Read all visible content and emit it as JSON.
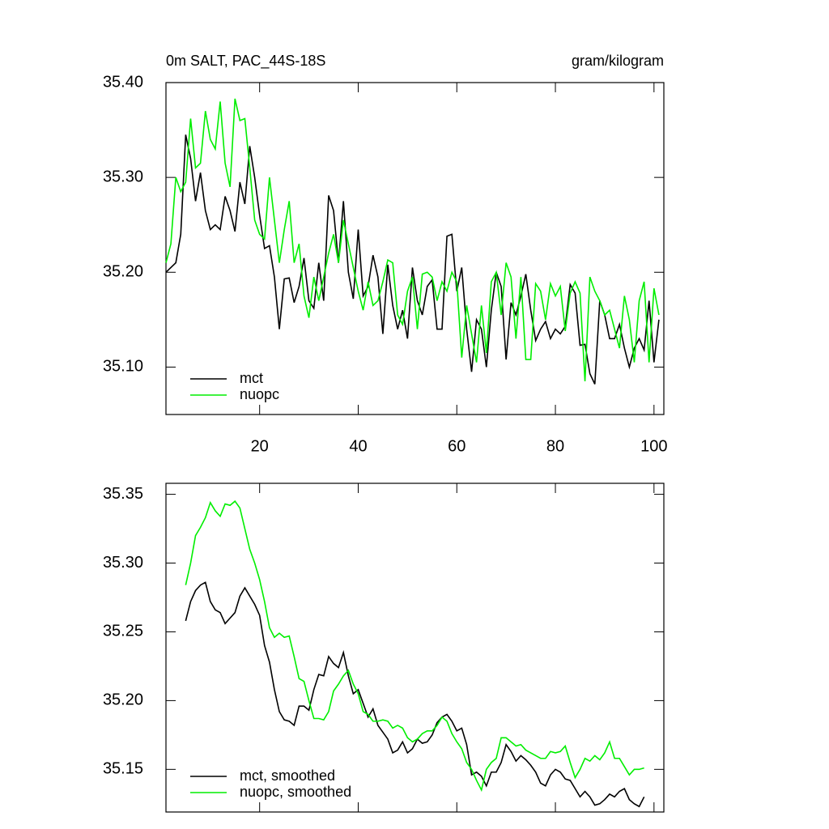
{
  "chart_data": [
    {
      "type": "line",
      "title": "0m SALT, PAC_44S-18S",
      "subtitle": "gram/kilogram",
      "x": [
        1,
        2,
        3,
        4,
        5,
        6,
        7,
        8,
        9,
        10,
        11,
        12,
        13,
        14,
        15,
        16,
        17,
        18,
        19,
        20,
        21,
        22,
        23,
        24,
        25,
        26,
        27,
        28,
        29,
        30,
        31,
        32,
        33,
        34,
        35,
        36,
        37,
        38,
        39,
        40,
        41,
        42,
        43,
        44,
        45,
        46,
        47,
        48,
        49,
        50,
        51,
        52,
        53,
        54,
        55,
        56,
        57,
        58,
        59,
        60,
        61,
        62,
        63,
        64,
        65,
        66,
        67,
        68,
        69,
        70,
        71,
        72,
        73,
        74,
        75,
        76,
        77,
        78,
        79,
        80,
        81,
        82,
        83,
        84,
        85,
        86,
        87,
        88,
        89,
        90,
        91,
        92,
        93,
        94,
        95,
        96,
        97,
        98,
        99,
        100,
        101
      ],
      "series": [
        {
          "name": "mct",
          "color": "#000000",
          "values": [
            35.2,
            35.205,
            35.21,
            35.24,
            35.345,
            35.32,
            35.275,
            35.305,
            35.265,
            35.245,
            35.25,
            35.245,
            35.28,
            35.265,
            35.243,
            35.295,
            35.272,
            35.333,
            35.3,
            35.26,
            35.225,
            35.228,
            35.195,
            35.14,
            35.193,
            35.194,
            35.168,
            35.185,
            35.215,
            35.17,
            35.162,
            35.21,
            35.17,
            35.281,
            35.265,
            35.21,
            35.275,
            35.2,
            35.172,
            35.245,
            35.175,
            35.185,
            35.218,
            35.195,
            35.135,
            35.208,
            35.165,
            35.14,
            35.16,
            35.13,
            35.205,
            35.17,
            35.155,
            35.185,
            35.192,
            35.14,
            35.14,
            35.238,
            35.24,
            35.18,
            35.205,
            35.14,
            35.095,
            35.15,
            35.14,
            35.1,
            35.16,
            35.2,
            35.185,
            35.108,
            35.168,
            35.155,
            35.175,
            35.198,
            35.16,
            35.128,
            35.14,
            35.148,
            35.13,
            35.14,
            35.135,
            35.143,
            35.187,
            35.178,
            35.123,
            35.124,
            35.093,
            35.082,
            35.17,
            35.155,
            35.13,
            35.13,
            35.145,
            35.12,
            35.1,
            35.12,
            35.13,
            35.118,
            35.17,
            35.105,
            35.15
          ]
        },
        {
          "name": "nuopc",
          "color": "#00ee00",
          "values": [
            35.21,
            35.23,
            35.3,
            35.285,
            35.295,
            35.362,
            35.31,
            35.315,
            35.37,
            35.34,
            35.33,
            35.38,
            35.315,
            35.29,
            35.383,
            35.36,
            35.362,
            35.31,
            35.255,
            35.24,
            35.235,
            35.3,
            35.255,
            35.21,
            35.245,
            35.275,
            35.21,
            35.23,
            35.175,
            35.152,
            35.195,
            35.17,
            35.195,
            35.22,
            35.24,
            35.21,
            35.255,
            35.23,
            35.205,
            35.18,
            35.16,
            35.19,
            35.165,
            35.17,
            35.19,
            35.213,
            35.21,
            35.155,
            35.145,
            35.18,
            35.195,
            35.14,
            35.198,
            35.2,
            35.195,
            35.17,
            35.19,
            35.18,
            35.2,
            35.19,
            35.11,
            35.165,
            35.135,
            35.105,
            35.165,
            35.115,
            35.19,
            35.2,
            35.155,
            35.21,
            35.195,
            35.13,
            35.195,
            35.108,
            35.108,
            35.188,
            35.18,
            35.15,
            35.188,
            35.175,
            35.185,
            35.138,
            35.178,
            35.19,
            35.178,
            35.085,
            35.195,
            35.18,
            35.17,
            35.155,
            35.16,
            35.14,
            35.12,
            35.175,
            35.15,
            35.105,
            35.17,
            35.19,
            35.105,
            35.183,
            35.155
          ]
        }
      ],
      "xlim": [
        1,
        102
      ],
      "xticks": [
        20,
        40,
        60,
        80,
        100
      ],
      "ylim": [
        35.05,
        35.4
      ],
      "yticks": [
        {
          "value": 35.1,
          "label": "35.10"
        },
        {
          "value": 35.2,
          "label": "35.20"
        },
        {
          "value": 35.3,
          "label": "35.30"
        },
        {
          "value": 35.4,
          "label": "35.40"
        }
      ],
      "legend": "lower left"
    },
    {
      "type": "line",
      "x": [
        1,
        2,
        3,
        4,
        5,
        6,
        7,
        8,
        9,
        10,
        11,
        12,
        13,
        14,
        15,
        16,
        17,
        18,
        19,
        20,
        21,
        22,
        23,
        24,
        25,
        26,
        27,
        28,
        29,
        30,
        31,
        32,
        33,
        34,
        35,
        36,
        37,
        38,
        39,
        40,
        41,
        42,
        43,
        44,
        45,
        46,
        47,
        48,
        49,
        50,
        51,
        52,
        53,
        54,
        55,
        56,
        57,
        58,
        59,
        60,
        61,
        62,
        63,
        64,
        65,
        66,
        67,
        68,
        69,
        70,
        71,
        72,
        73,
        74,
        75,
        76,
        77,
        78,
        79,
        80,
        81,
        82,
        83,
        84,
        85,
        86,
        87,
        88,
        89,
        90,
        91,
        92,
        93,
        94,
        95,
        96,
        97,
        98,
        99,
        100,
        101
      ],
      "series": [
        {
          "name": "mct, smoothed",
          "color": "#000000",
          "values": [
            null,
            null,
            null,
            null,
            35.258,
            35.272,
            35.28,
            35.284,
            35.286,
            35.272,
            35.266,
            35.264,
            35.256,
            35.26,
            35.264,
            35.276,
            35.282,
            35.276,
            35.27,
            35.262,
            35.24,
            35.228,
            35.208,
            35.192,
            35.186,
            35.185,
            35.182,
            35.196,
            35.196,
            35.193,
            35.208,
            35.219,
            35.218,
            35.232,
            35.227,
            35.224,
            35.235,
            35.218,
            35.205,
            35.208,
            35.198,
            35.188,
            35.194,
            35.182,
            35.177,
            35.172,
            35.162,
            35.164,
            35.17,
            35.162,
            35.165,
            35.172,
            35.169,
            35.17,
            35.175,
            35.184,
            35.188,
            35.19,
            35.185,
            35.178,
            35.18,
            35.168,
            35.146,
            35.148,
            35.145,
            35.138,
            35.148,
            35.148,
            35.155,
            35.168,
            35.163,
            35.156,
            35.16,
            35.157,
            35.153,
            35.148,
            35.14,
            35.138,
            35.146,
            35.15,
            35.148,
            35.143,
            35.142,
            35.136,
            35.13,
            35.134,
            35.13,
            35.124,
            35.125,
            35.128,
            35.132,
            35.13,
            35.134,
            35.136,
            35.128,
            35.125,
            35.123,
            35.13,
            null,
            null,
            null
          ]
        },
        {
          "name": "nuopc, smoothed",
          "color": "#00ee00",
          "values": [
            null,
            null,
            null,
            null,
            35.284,
            35.3,
            35.32,
            35.326,
            35.333,
            35.344,
            35.338,
            35.334,
            35.343,
            35.342,
            35.345,
            35.34,
            35.325,
            35.31,
            35.3,
            35.288,
            35.272,
            35.253,
            35.246,
            35.249,
            35.246,
            35.247,
            35.232,
            35.216,
            35.214,
            35.2,
            35.187,
            35.187,
            35.186,
            35.192,
            35.207,
            35.212,
            35.218,
            35.222,
            35.212,
            35.205,
            35.192,
            35.19,
            35.185,
            35.185,
            35.186,
            35.185,
            35.18,
            35.182,
            35.18,
            35.173,
            35.17,
            35.172,
            35.176,
            35.178,
            35.178,
            35.182,
            35.188,
            35.185,
            35.176,
            35.17,
            35.165,
            35.155,
            35.15,
            35.142,
            35.135,
            35.15,
            35.155,
            35.158,
            35.173,
            35.173,
            35.17,
            35.167,
            35.168,
            35.164,
            35.162,
            35.16,
            35.158,
            35.158,
            35.163,
            35.162,
            35.163,
            35.167,
            35.155,
            35.144,
            35.15,
            35.158,
            35.156,
            35.16,
            35.157,
            35.162,
            35.17,
            35.158,
            35.158,
            35.152,
            35.146,
            35.15,
            35.15,
            35.151,
            null,
            null,
            null
          ]
        }
      ],
      "xlim": [
        1,
        102
      ],
      "xticks": [
        20,
        40,
        60,
        80,
        100
      ],
      "ylim": [
        35.119,
        35.358
      ],
      "yticks": [
        35.15,
        {
          "value": 35.2,
          "label": "35.20"
        },
        35.25,
        {
          "value": 35.3,
          "label": "35.30"
        },
        35.35
      ],
      "legend": "lower left"
    }
  ]
}
